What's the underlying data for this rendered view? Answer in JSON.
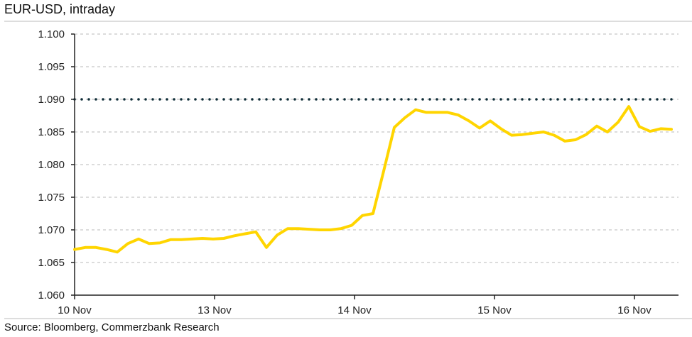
{
  "chart_data": {
    "type": "line",
    "title": "EUR-USD, intraday",
    "source": "Source: Bloomberg, Commerzbank Research",
    "xlabel": "",
    "ylabel": "",
    "ylim": [
      1.06,
      1.1
    ],
    "yticks": [
      "1.100",
      "1.095",
      "1.090",
      "1.085",
      "1.080",
      "1.075",
      "1.070",
      "1.065",
      "1.060"
    ],
    "xticks": [
      "10 Nov",
      "13 Nov",
      "14 Nov",
      "15 Nov",
      "16 Nov"
    ],
    "grid": "horizontal dashed",
    "reference_line": {
      "value": 1.09,
      "style": "dotted",
      "color": "#0d2b36"
    },
    "series": [
      {
        "color": "#ffd500",
        "values": [
          1.067,
          1.0673,
          1.0673,
          1.067,
          1.0666,
          1.0679,
          1.0686,
          1.0679,
          1.068,
          1.0685,
          1.0685,
          1.0686,
          1.0687,
          1.0686,
          1.0687,
          1.0691,
          1.0694,
          1.0697,
          1.0673,
          1.0692,
          1.0702,
          1.0702,
          1.0701,
          1.07,
          1.07,
          1.0702,
          1.0707,
          1.0722,
          1.0725,
          1.079,
          1.0857,
          1.0872,
          1.0884,
          1.088,
          1.088,
          1.088,
          1.0876,
          1.0867,
          1.0856,
          1.0867,
          1.0855,
          1.0845,
          1.0846,
          1.0848,
          1.085,
          1.0845,
          1.0836,
          1.0838,
          1.0846,
          1.0859,
          1.085,
          1.0865,
          1.0889,
          1.0858,
          1.0851,
          1.0855,
          1.0854
        ]
      }
    ]
  }
}
